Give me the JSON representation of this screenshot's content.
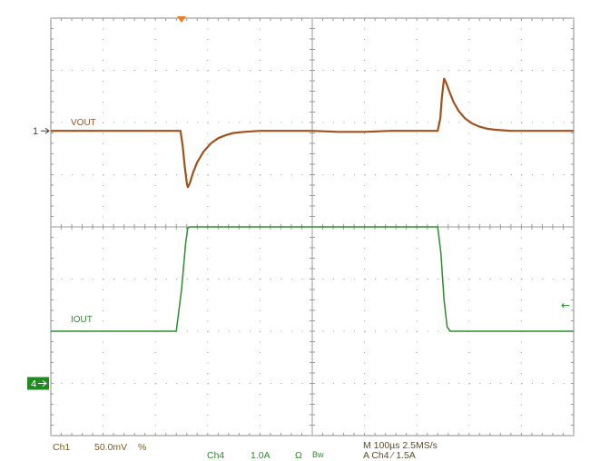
{
  "chart_data": {
    "type": "line",
    "title": "",
    "time_range_us": [
      0,
      1000
    ],
    "divisions": {
      "horizontal": 10,
      "vertical": 8
    },
    "series": [
      {
        "name": "VOUT",
        "channel": "Ch1",
        "color": "#a0521a",
        "scale_label": "50.0mV",
        "units_per_div_mV": 50,
        "ref_marker": "1",
        "x_us": [
          0,
          100,
          190,
          248,
          252,
          256,
          260,
          262,
          266,
          272,
          280,
          292,
          306,
          320,
          335,
          350,
          370,
          400,
          450,
          500,
          550,
          600,
          650,
          700,
          740,
          745,
          748,
          752,
          756,
          762,
          770,
          780,
          792,
          806,
          820,
          835,
          850,
          880,
          920,
          960,
          1000
        ],
        "y_mV": [
          0,
          0,
          0,
          0,
          -14,
          -34,
          -50,
          -54,
          -50,
          -40,
          -30,
          -20,
          -12,
          -7,
          -4,
          -2,
          -1,
          0,
          0,
          0,
          -1,
          -1,
          0,
          0,
          0,
          12,
          32,
          50,
          46,
          38,
          28,
          19,
          12,
          7,
          4,
          2,
          1,
          0,
          0,
          0,
          0
        ]
      },
      {
        "name": "IOUT",
        "channel": "Ch4",
        "color": "#2e8b2e",
        "scale_label": "1.0A",
        "units_per_div_A": 1,
        "ref_marker": "4",
        "x_us": [
          0,
          240,
          250,
          258,
          262,
          266,
          500,
          740,
          746,
          752,
          758,
          764,
          800,
          1000
        ],
        "y_A": [
          1.0,
          1.0,
          1.8,
          2.7,
          2.98,
          3.0,
          3.0,
          3.0,
          2.5,
          1.6,
          1.08,
          1.0,
          1.0,
          1.0
        ]
      }
    ]
  },
  "channel_readout": {
    "ch1_label": "Ch1",
    "ch1_scale": "50.0mV",
    "ch1_suffix": "%",
    "ch4_label": "Ch4",
    "ch4_scale": "1.0A",
    "ch4_coupling": "Ω",
    "ch4_bw": "Bw"
  },
  "timebase": {
    "text": "M 100µs 2.5MS/s",
    "trigger_text": "A  Ch4  ⁄  1.5A"
  },
  "trigger_level_marker": "←"
}
